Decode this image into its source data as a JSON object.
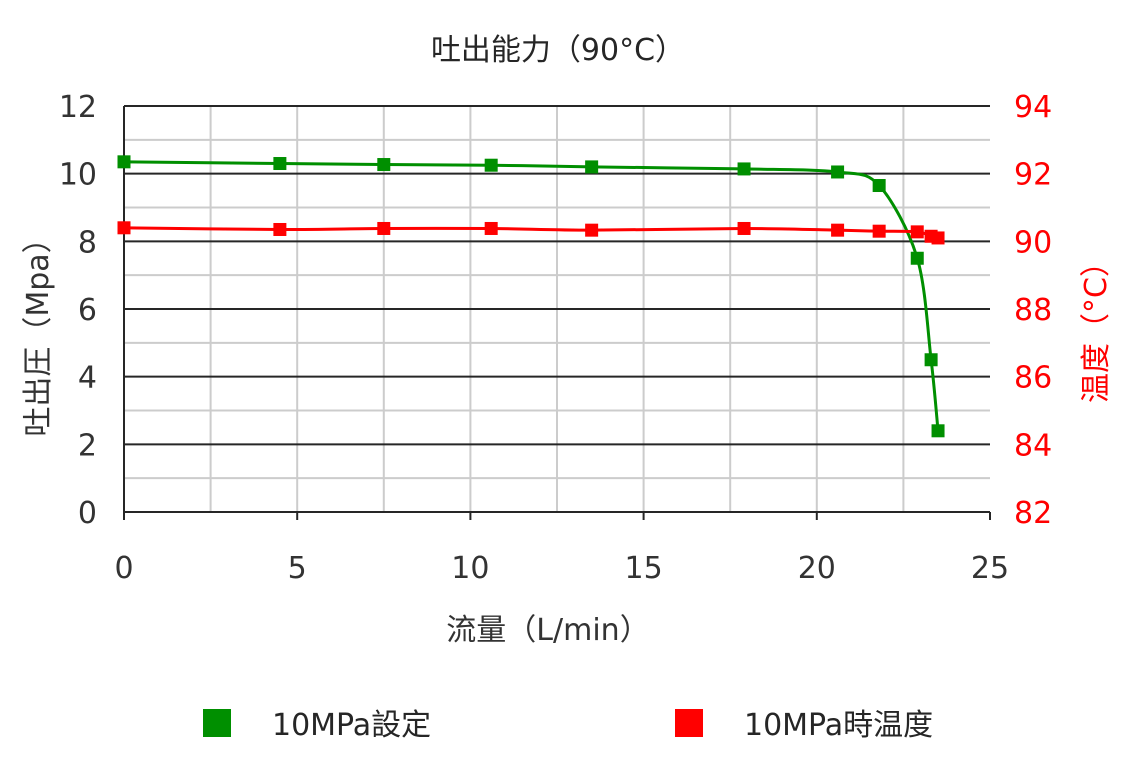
{
  "chart_data": {
    "type": "line",
    "title": "吐出能力（90°C）",
    "xlabel": "流量（L/min）",
    "ylabel": "吐出圧（Mpa）",
    "y2label": "温度（°C）",
    "xlim": [
      0,
      25
    ],
    "ylim": [
      0,
      12
    ],
    "y2lim": [
      82,
      94
    ],
    "x_ticks": [
      0,
      5,
      10,
      15,
      20,
      25
    ],
    "y_ticks": [
      0,
      2,
      4,
      6,
      8,
      10,
      12
    ],
    "y2_ticks": [
      82,
      84,
      86,
      88,
      90,
      92,
      94
    ],
    "grid": true,
    "legend_position": "bottom",
    "series": [
      {
        "name": "10MPa設定",
        "axis": "left",
        "color": "#008f00",
        "marker": "square",
        "x": [
          0,
          4.5,
          7.5,
          10.6,
          13.5,
          17.9,
          20.6,
          21.8,
          22.9,
          23.3,
          23.5
        ],
        "y": [
          10.35,
          10.3,
          10.27,
          10.25,
          10.2,
          10.14,
          10.05,
          9.65,
          7.5,
          4.5,
          2.4
        ]
      },
      {
        "name": "10MPa時温度",
        "axis": "right",
        "color": "#ff0000",
        "marker": "square",
        "x": [
          0,
          4.5,
          7.5,
          10.6,
          13.5,
          17.9,
          20.6,
          21.8,
          22.9,
          23.3,
          23.5
        ],
        "y": [
          90.4,
          90.35,
          90.38,
          90.38,
          90.33,
          90.38,
          90.33,
          90.3,
          90.28,
          90.15,
          90.1
        ]
      }
    ]
  }
}
